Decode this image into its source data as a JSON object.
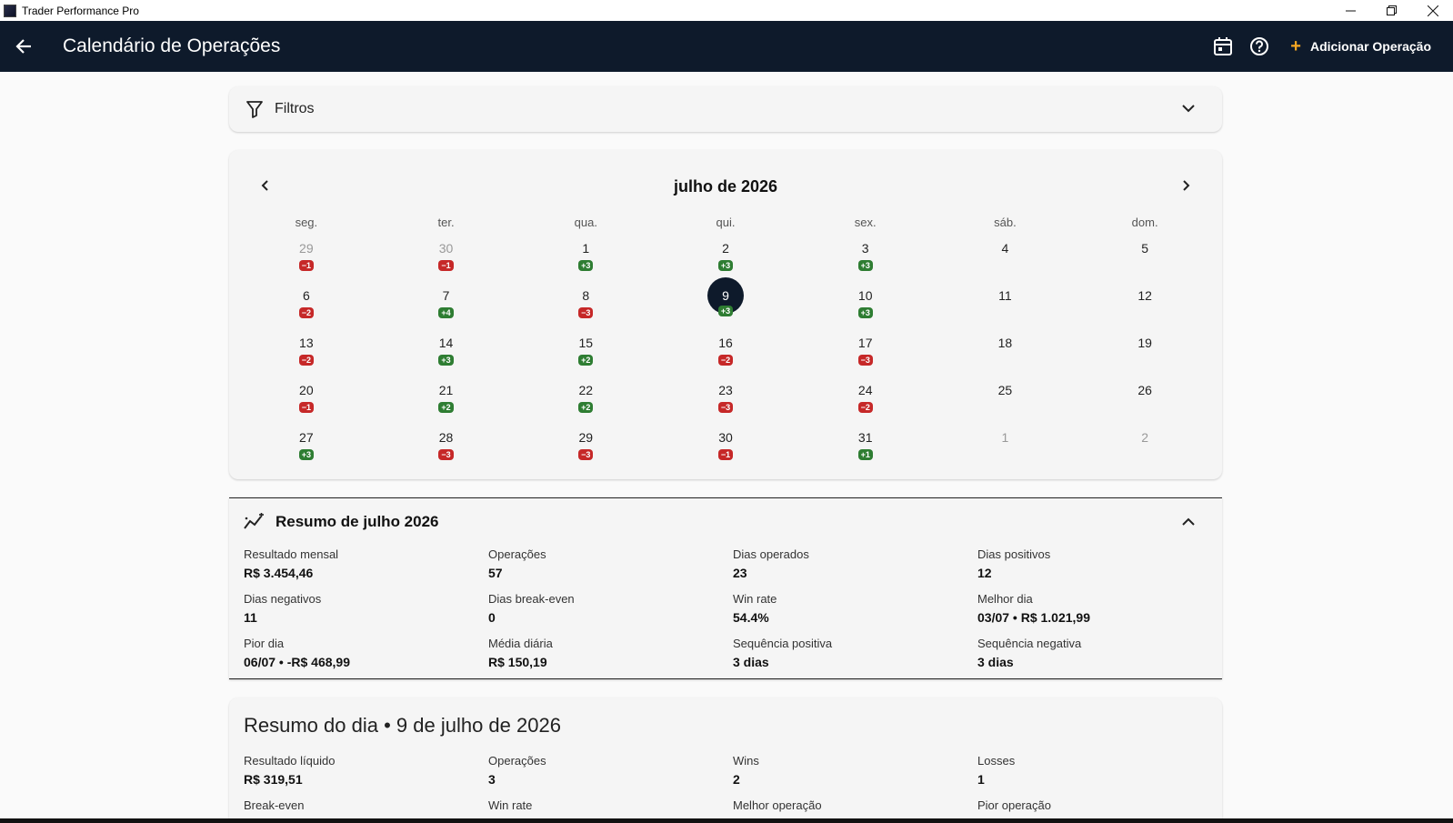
{
  "window": {
    "title": "Trader Performance Pro",
    "minimize": "—",
    "maximize": "❐",
    "close": "✕"
  },
  "appbar": {
    "title": "Calendário de Operações",
    "add_label": "Adicionar Operação",
    "add_plus": "+"
  },
  "filters": {
    "label": "Filtros"
  },
  "calendar": {
    "month_label": "julho de 2026",
    "weekdays": [
      "seg.",
      "ter.",
      "qua.",
      "qui.",
      "sex.",
      "sáb.",
      "dom."
    ],
    "weeks": [
      [
        {
          "d": "29",
          "b": "−1",
          "t": "neg",
          "o": true
        },
        {
          "d": "30",
          "b": "−1",
          "t": "neg",
          "o": true
        },
        {
          "d": "1",
          "b": "+3",
          "t": "pos"
        },
        {
          "d": "2",
          "b": "+3",
          "t": "pos"
        },
        {
          "d": "3",
          "b": "+3",
          "t": "pos"
        },
        {
          "d": "4"
        },
        {
          "d": "5"
        }
      ],
      [
        {
          "d": "6",
          "b": "−2",
          "t": "neg"
        },
        {
          "d": "7",
          "b": "+4",
          "t": "pos"
        },
        {
          "d": "8",
          "b": "−3",
          "t": "neg"
        },
        {
          "d": "9",
          "b": "+3",
          "t": "pos",
          "s": true
        },
        {
          "d": "10",
          "b": "+3",
          "t": "pos"
        },
        {
          "d": "11"
        },
        {
          "d": "12"
        }
      ],
      [
        {
          "d": "13",
          "b": "−2",
          "t": "neg"
        },
        {
          "d": "14",
          "b": "+3",
          "t": "pos"
        },
        {
          "d": "15",
          "b": "+2",
          "t": "pos"
        },
        {
          "d": "16",
          "b": "−2",
          "t": "neg"
        },
        {
          "d": "17",
          "b": "−3",
          "t": "neg"
        },
        {
          "d": "18"
        },
        {
          "d": "19"
        }
      ],
      [
        {
          "d": "20",
          "b": "−1",
          "t": "neg"
        },
        {
          "d": "21",
          "b": "+2",
          "t": "pos"
        },
        {
          "d": "22",
          "b": "+2",
          "t": "pos"
        },
        {
          "d": "23",
          "b": "−3",
          "t": "neg"
        },
        {
          "d": "24",
          "b": "−2",
          "t": "neg"
        },
        {
          "d": "25"
        },
        {
          "d": "26"
        }
      ],
      [
        {
          "d": "27",
          "b": "+3",
          "t": "pos"
        },
        {
          "d": "28",
          "b": "−3",
          "t": "neg"
        },
        {
          "d": "29",
          "b": "−3",
          "t": "neg"
        },
        {
          "d": "30",
          "b": "−1",
          "t": "neg"
        },
        {
          "d": "31",
          "b": "+1",
          "t": "pos"
        },
        {
          "d": "1",
          "o": true
        },
        {
          "d": "2",
          "o": true
        }
      ]
    ]
  },
  "summary": {
    "title": "Resumo de julho 2026",
    "stats": [
      {
        "label": "Resultado mensal",
        "value": "R$  3.454,46"
      },
      {
        "label": "Operações",
        "value": "57"
      },
      {
        "label": "Dias operados",
        "value": "23"
      },
      {
        "label": "Dias positivos",
        "value": "12"
      },
      {
        "label": "Dias negativos",
        "value": "11"
      },
      {
        "label": "Dias break-even",
        "value": "0"
      },
      {
        "label": "Win rate",
        "value": "54.4%"
      },
      {
        "label": "Melhor dia",
        "value": "03/07 • R$  1.021,99"
      },
      {
        "label": "Pior dia",
        "value": "06/07 • -R$  468,99"
      },
      {
        "label": "Média diária",
        "value": "R$  150,19"
      },
      {
        "label": "Sequência positiva",
        "value": "3 dias"
      },
      {
        "label": "Sequência negativa",
        "value": "3 dias"
      }
    ]
  },
  "day_summary": {
    "title": "Resumo do dia • 9 de julho de 2026",
    "stats": [
      {
        "label": "Resultado líquido",
        "value": "R$  319,51"
      },
      {
        "label": "Operações",
        "value": "3"
      },
      {
        "label": "Wins",
        "value": "2"
      },
      {
        "label": "Losses",
        "value": "1"
      },
      {
        "label": "Break-even",
        "value": ""
      },
      {
        "label": "Win rate",
        "value": ""
      },
      {
        "label": "Melhor operação",
        "value": ""
      },
      {
        "label": "Pior operação",
        "value": ""
      }
    ]
  },
  "colors": {
    "appbar": "#0e1a2b",
    "positive": "#2e7d32",
    "negative": "#c62828",
    "accent": "#f5a623"
  },
  "icons": {
    "back": "arrow-left-icon",
    "calendar": "calendar-icon",
    "help": "help-circle-icon",
    "filter": "filter-icon"
  }
}
